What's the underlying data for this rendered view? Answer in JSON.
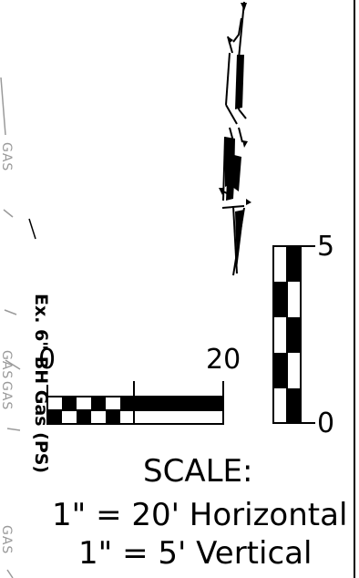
{
  "gas_labels": [
    "GAS",
    "GAS",
    "GAS",
    "GAS"
  ],
  "pipe_label": "Ex. 6\" BH Gas (PS)",
  "horizontal_scale": {
    "start_label": "0",
    "end_label": "20"
  },
  "vertical_scale": {
    "top_label": "5",
    "bottom_label": "0"
  },
  "scale_block": {
    "title": "SCALE:",
    "horizontal": "1\" = 20' Horizontal",
    "vertical": "1\" = 5' Vertical"
  },
  "colors": {
    "ink": "#000000",
    "gas_line": "#9a9a9a"
  }
}
